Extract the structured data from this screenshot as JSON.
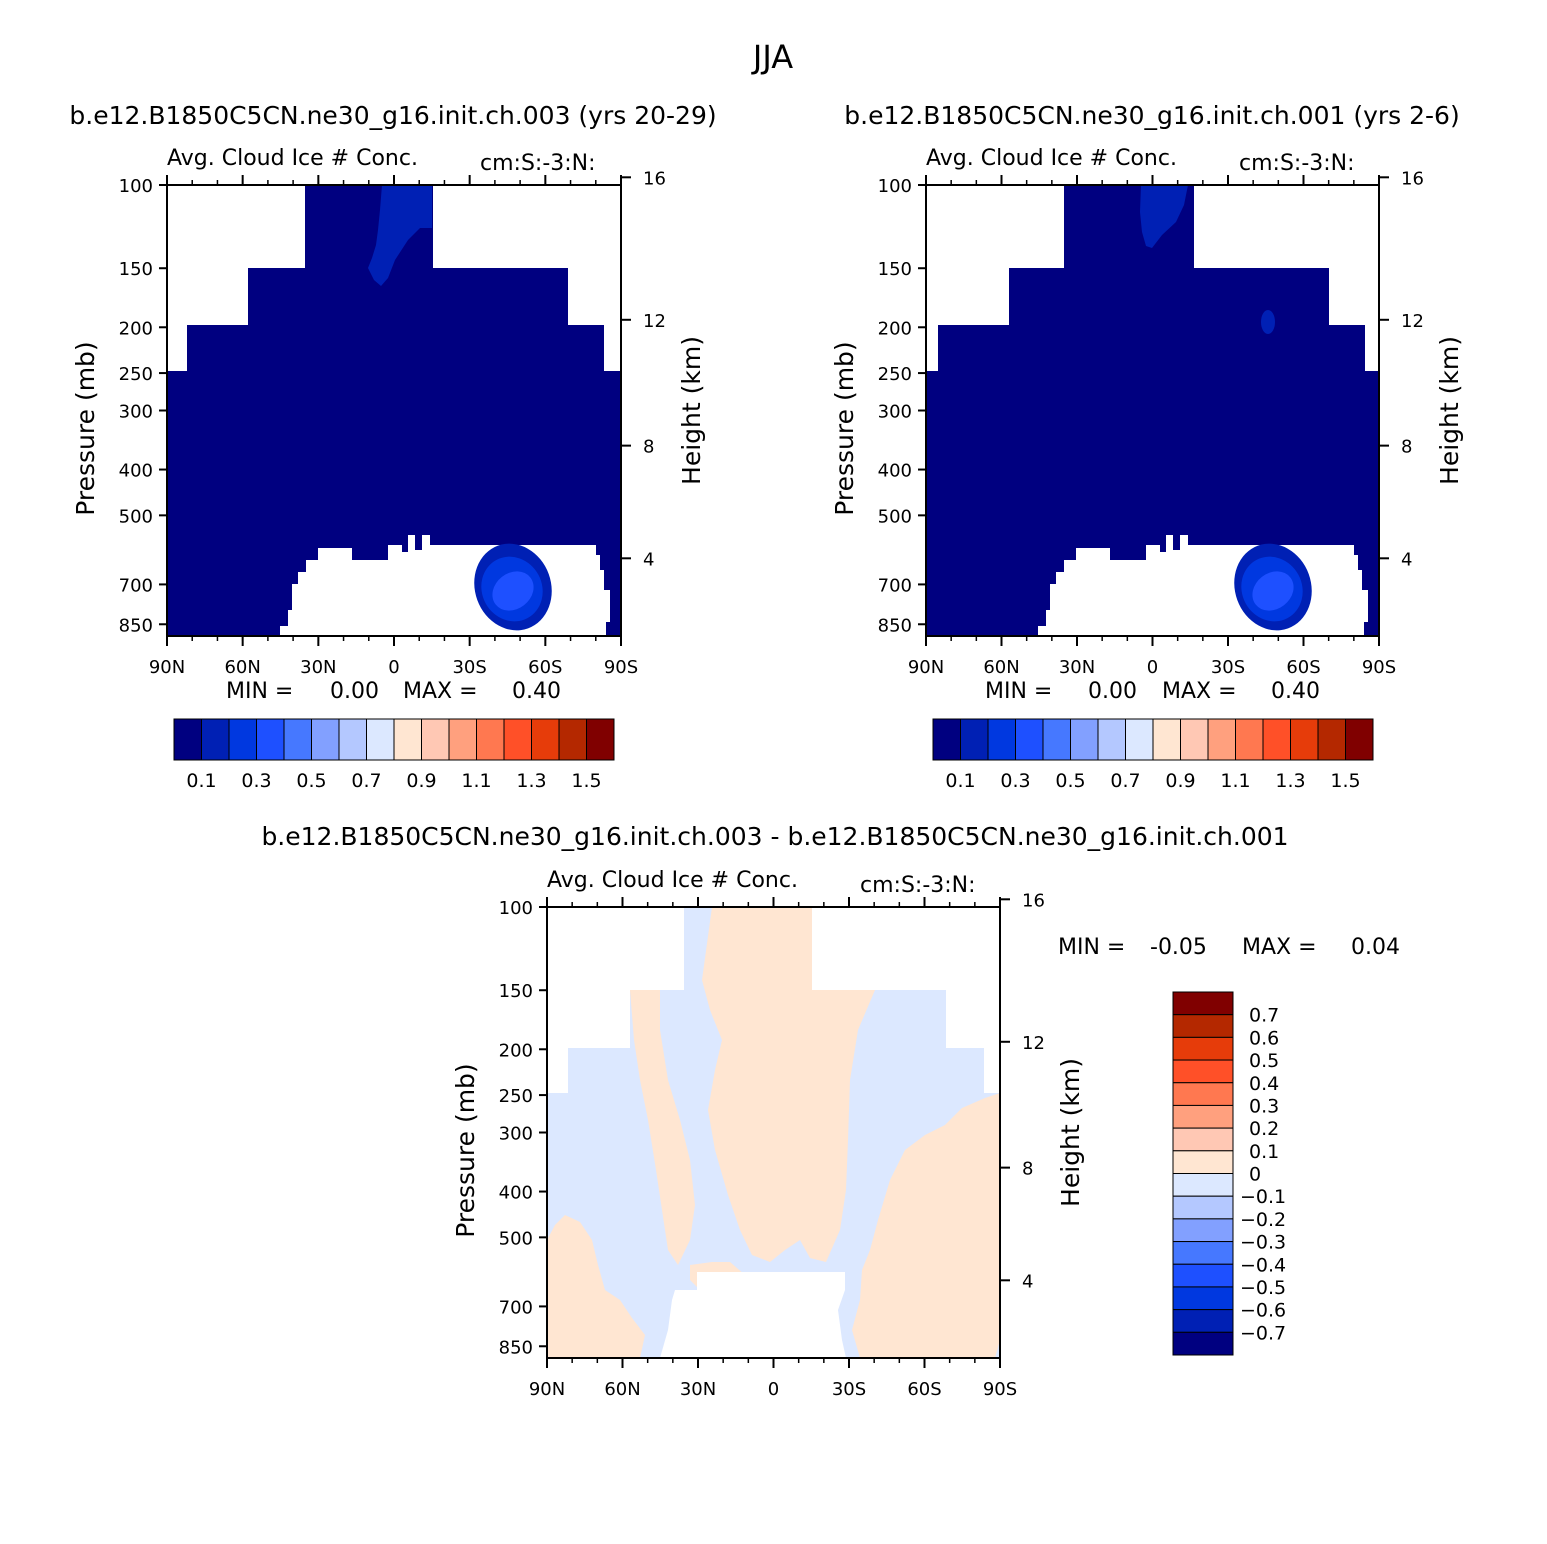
{
  "figure_title": "JJA",
  "colors": {
    "abs_scale": [
      "#000080",
      "#0020b4",
      "#0038e0",
      "#1e50ff",
      "#4678ff",
      "#82a0ff",
      "#b4c8ff",
      "#dce8ff",
      "#ffe6d2",
      "#ffc8b4",
      "#ffa07e",
      "#ff7850",
      "#ff5028",
      "#e63c0a",
      "#b42800",
      "#800000"
    ],
    "diff_scale": [
      "#000080",
      "#0020b4",
      "#0038e0",
      "#1e50ff",
      "#4678ff",
      "#82a0ff",
      "#b4c8ff",
      "#dce8ff",
      "#ffe6d2",
      "#ffc8b4",
      "#ffa07e",
      "#ff7850",
      "#ff5028",
      "#e63c0a",
      "#b42800",
      "#800000"
    ]
  },
  "panels": [
    {
      "case_title": "b.e12.B1850C5CN.ne30_g16.init.ch.003 (yrs 20-29)",
      "variable": "Avg. Cloud Ice # Conc.",
      "units": "cm:S:-3:N:",
      "min_label": "MIN =",
      "min_value": "0.00",
      "max_label": "MAX =",
      "max_value": "0.40"
    },
    {
      "case_title": "b.e12.B1850C5CN.ne30_g16.init.ch.001 (yrs 2-6)",
      "variable": "Avg. Cloud Ice # Conc.",
      "units": "cm:S:-3:N:",
      "min_label": "MIN =",
      "min_value": "0.00",
      "max_label": "MAX =",
      "max_value": "0.40"
    },
    {
      "case_title": "b.e12.B1850C5CN.ne30_g16.init.ch.003 - b.e12.B1850C5CN.ne30_g16.init.ch.001",
      "variable": "Avg. Cloud Ice # Conc.",
      "units": "cm:S:-3:N:",
      "min_label": "MIN =",
      "min_value": "-0.05",
      "max_label": "MAX =",
      "max_value": "0.04"
    }
  ],
  "axes": {
    "ylabel_left": "Pressure (mb)",
    "ylabel_right": "Height (km)",
    "pressure_ticks": [
      "100",
      "150",
      "200",
      "250",
      "300",
      "400",
      "500",
      "700",
      "850"
    ],
    "height_ticks": [
      "16",
      "12",
      "8",
      "4"
    ],
    "lat_ticks": [
      "90N",
      "60N",
      "30N",
      "0",
      "30S",
      "60S",
      "90S"
    ]
  },
  "abs_colorbar_labels": [
    "0.1",
    "0.3",
    "0.5",
    "0.7",
    "0.9",
    "1.1",
    "1.3",
    "1.5"
  ],
  "diff_colorbar_labels": [
    "0.7",
    "0.6",
    "0.5",
    "0.4",
    "0.3",
    "0.2",
    "0.1",
    "0",
    "-0.1",
    "-0.2",
    "-0.3",
    "-0.4",
    "-0.5",
    "-0.6",
    "-0.7"
  ],
  "chart_data": [
    {
      "type": "heatmap",
      "title": "Avg. Cloud Ice # Conc.",
      "xlabel": "",
      "ylabel": "Pressure (mb)",
      "ylabel_right": "Height (km)",
      "x_ticks": [
        "90N",
        "60N",
        "30N",
        "0",
        "30S",
        "60S",
        "90S"
      ],
      "y_ticks": [
        100,
        150,
        200,
        250,
        300,
        400,
        500,
        700,
        850
      ],
      "ylim": [
        100,
        900
      ],
      "scale": "log-pressure",
      "levels": [
        0.1,
        0.2,
        0.3,
        0.4,
        0.5,
        0.6,
        0.7,
        0.8,
        0.9,
        1.0,
        1.1,
        1.2,
        1.3,
        1.4,
        1.5
      ],
      "min": 0.0,
      "max": 0.4,
      "features": [
        {
          "region": "cloud ice domain",
          "value": 0.05
        },
        {
          "region": "upper tropics near 0-10N, 100-150 mb",
          "value": 0.15
        },
        {
          "region": "45-55S, 600-800 mb maximum",
          "value": 0.4
        }
      ]
    },
    {
      "type": "heatmap",
      "title": "Avg. Cloud Ice # Conc.",
      "xlabel": "",
      "ylabel": "Pressure (mb)",
      "ylabel_right": "Height (km)",
      "x_ticks": [
        "90N",
        "60N",
        "30N",
        "0",
        "30S",
        "60S",
        "90S"
      ],
      "y_ticks": [
        100,
        150,
        200,
        250,
        300,
        400,
        500,
        700,
        850
      ],
      "ylim": [
        100,
        900
      ],
      "scale": "log-pressure",
      "levels": [
        0.1,
        0.2,
        0.3,
        0.4,
        0.5,
        0.6,
        0.7,
        0.8,
        0.9,
        1.0,
        1.1,
        1.2,
        1.3,
        1.4,
        1.5
      ],
      "min": 0.0,
      "max": 0.4,
      "features": [
        {
          "region": "cloud ice domain",
          "value": 0.05
        },
        {
          "region": "upper tropics near 0-10N, 100-130 mb",
          "value": 0.15
        },
        {
          "region": "45-55S, 600-800 mb maximum",
          "value": 0.4
        }
      ]
    },
    {
      "type": "heatmap",
      "title": "Avg. Cloud Ice # Conc.",
      "xlabel": "",
      "ylabel": "Pressure (mb)",
      "ylabel_right": "Height (km)",
      "x_ticks": [
        "90N",
        "60N",
        "30N",
        "0",
        "30S",
        "60S",
        "90S"
      ],
      "y_ticks": [
        100,
        150,
        200,
        250,
        300,
        400,
        500,
        700,
        850
      ],
      "ylim": [
        100,
        900
      ],
      "scale": "log-pressure",
      "levels": [
        -0.7,
        -0.6,
        -0.5,
        -0.4,
        -0.3,
        -0.2,
        -0.1,
        0,
        0.1,
        0.2,
        0.3,
        0.4,
        0.5,
        0.6,
        0.7
      ],
      "min": -0.05,
      "max": 0.04,
      "features": [
        {
          "region": "mixed small differences",
          "value_range": [
            -0.05,
            0.04
          ]
        }
      ]
    }
  ]
}
